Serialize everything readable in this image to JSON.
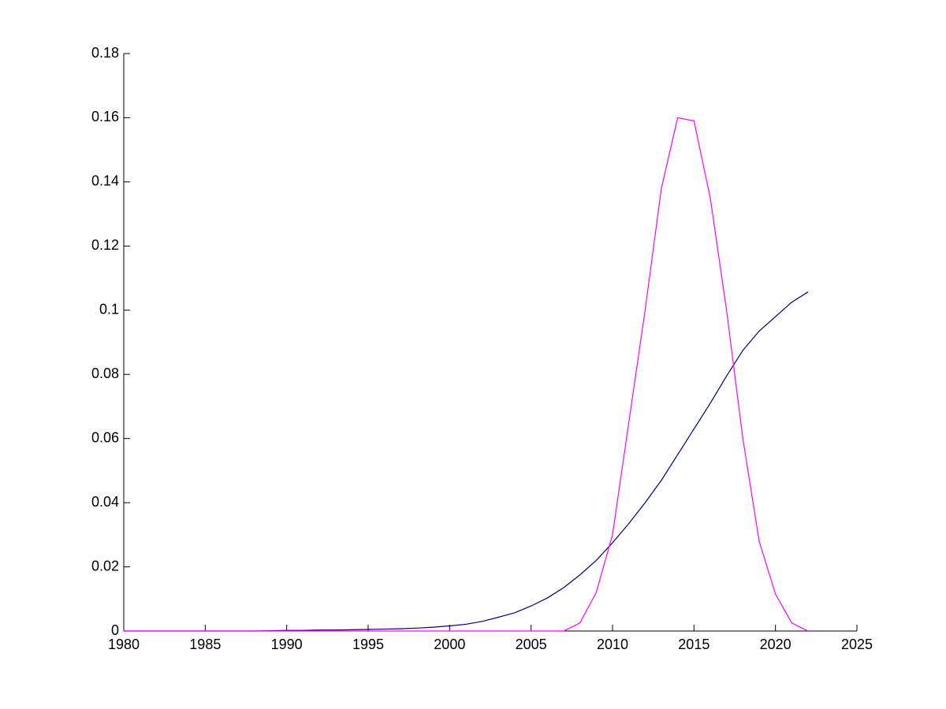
{
  "chart_data": {
    "type": "line",
    "x": [
      1980,
      1981,
      1982,
      1983,
      1984,
      1985,
      1986,
      1987,
      1988,
      1989,
      1990,
      1991,
      1992,
      1993,
      1994,
      1995,
      1996,
      1997,
      1998,
      1999,
      2000,
      2001,
      2002,
      2003,
      2004,
      2005,
      2006,
      2007,
      2008,
      2009,
      2010,
      2011,
      2012,
      2013,
      2014,
      2015,
      2016,
      2017,
      2018,
      2019,
      2020,
      2021,
      2022
    ],
    "series": [
      {
        "color": "#00007f",
        "values": [
          0,
          0,
          0,
          0,
          0,
          0,
          0,
          0,
          0,
          0.0001,
          0.0002,
          0.0002,
          0.0003,
          0.0003,
          0.0004,
          0.0005,
          0.0006,
          0.0007,
          0.0009,
          0.0012,
          0.0016,
          0.0021,
          0.003,
          0.0043,
          0.0057,
          0.0078,
          0.0103,
          0.0135,
          0.0175,
          0.022,
          0.0275,
          0.0335,
          0.04,
          0.047,
          0.055,
          0.063,
          0.071,
          0.0795,
          0.0875,
          0.0935,
          0.098,
          0.1025,
          0.1057
        ]
      },
      {
        "color": "#ff00ff",
        "values": [
          0,
          0,
          0,
          0,
          0,
          0,
          0,
          0,
          0,
          0,
          0,
          0,
          0,
          0,
          0,
          0,
          0,
          0,
          0,
          0,
          0,
          0,
          0,
          0,
          0,
          0,
          0,
          0,
          0.0025,
          0.012,
          0.03,
          0.065,
          0.1,
          0.138,
          0.16,
          0.159,
          0.135,
          0.1,
          0.06,
          0.028,
          0.0115,
          0.0025,
          0
        ]
      }
    ],
    "xlim": [
      1980,
      2025
    ],
    "xticks": [
      1980,
      1985,
      1990,
      1995,
      2000,
      2005,
      2010,
      2015,
      2020,
      2025
    ],
    "ylim": [
      0,
      0.18
    ],
    "yticks": [
      0,
      0.02,
      0.04,
      0.06,
      0.08,
      0.1,
      0.12,
      0.14,
      0.16,
      0.18
    ]
  }
}
